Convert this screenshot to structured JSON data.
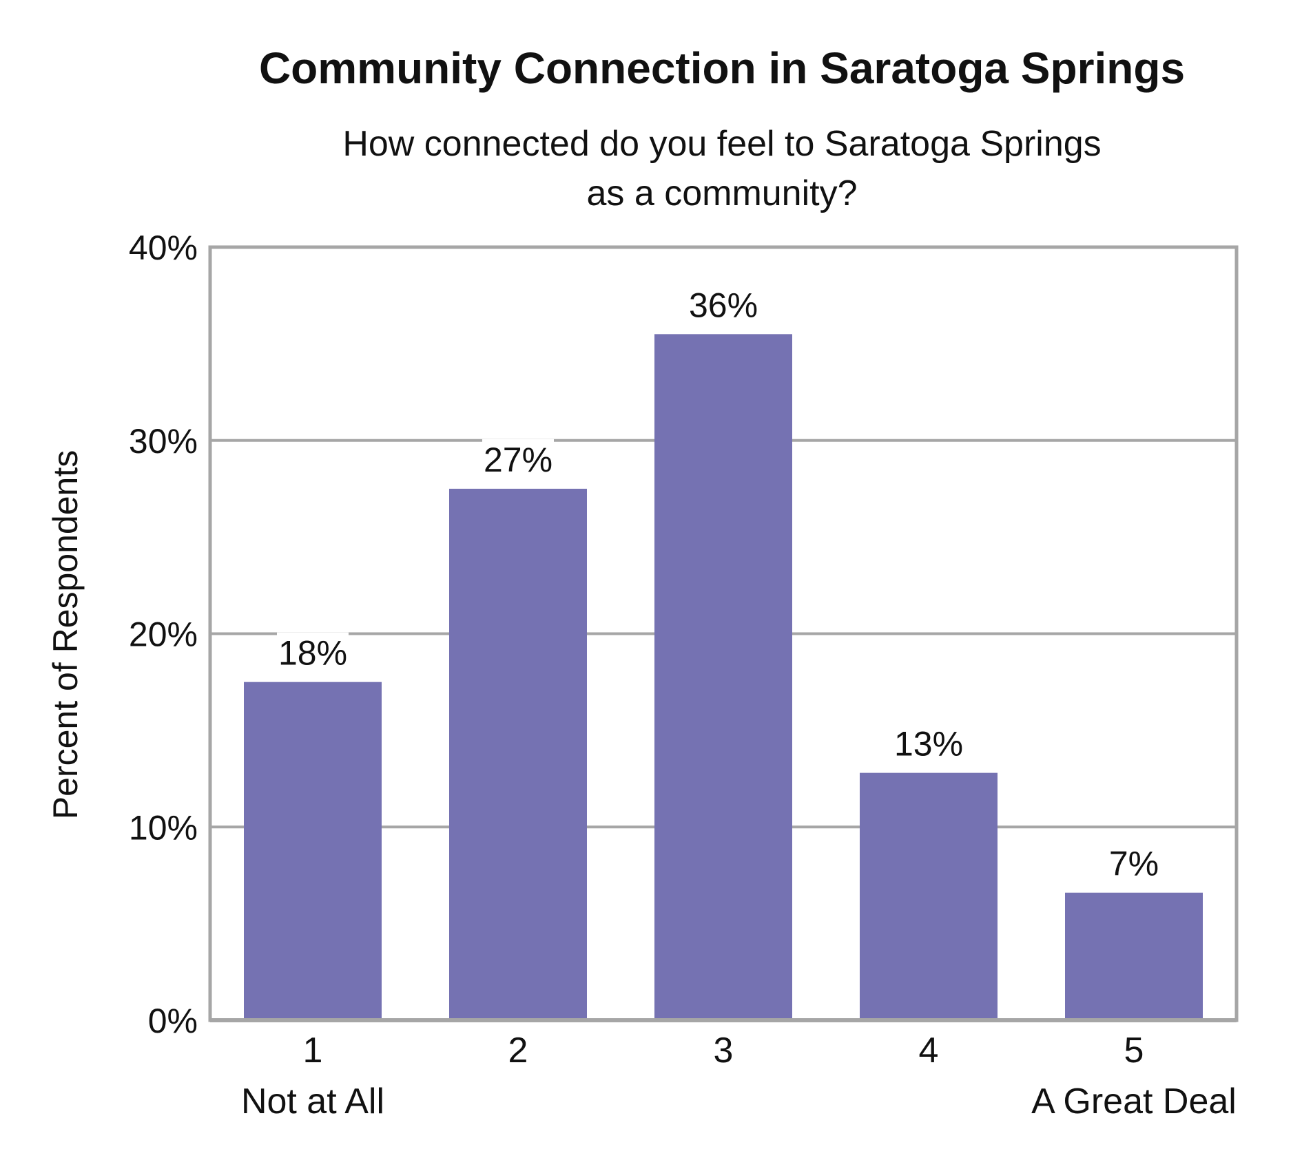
{
  "chart_data": {
    "type": "bar",
    "title": "Community Connection in Saratoga Springs",
    "subtitle": "How connected do you feel to Saratoga Springs as a community?",
    "subtitle_lines": [
      "How connected do you feel to Saratoga Springs",
      "as a community?"
    ],
    "ylabel": "Percent of Respondents",
    "xlabel": "",
    "categories": [
      "1",
      "2",
      "3",
      "4",
      "5"
    ],
    "category_sublabels": [
      "Not at All",
      "",
      "",
      "",
      "A Great Deal"
    ],
    "values": [
      17.5,
      27.5,
      35.5,
      12.8,
      6.6
    ],
    "value_labels": [
      "18%",
      "27%",
      "36%",
      "13%",
      "7%"
    ],
    "ylim": [
      0,
      40
    ],
    "yticks": [
      0,
      10,
      20,
      30,
      40
    ],
    "ytick_labels": [
      "0%",
      "10%",
      "20%",
      "30%",
      "40%"
    ],
    "grid": true,
    "legend": "none",
    "bar_color": "#7572B2",
    "grid_color": "#A6A6A6",
    "frame_color": "#A6A6A6"
  }
}
